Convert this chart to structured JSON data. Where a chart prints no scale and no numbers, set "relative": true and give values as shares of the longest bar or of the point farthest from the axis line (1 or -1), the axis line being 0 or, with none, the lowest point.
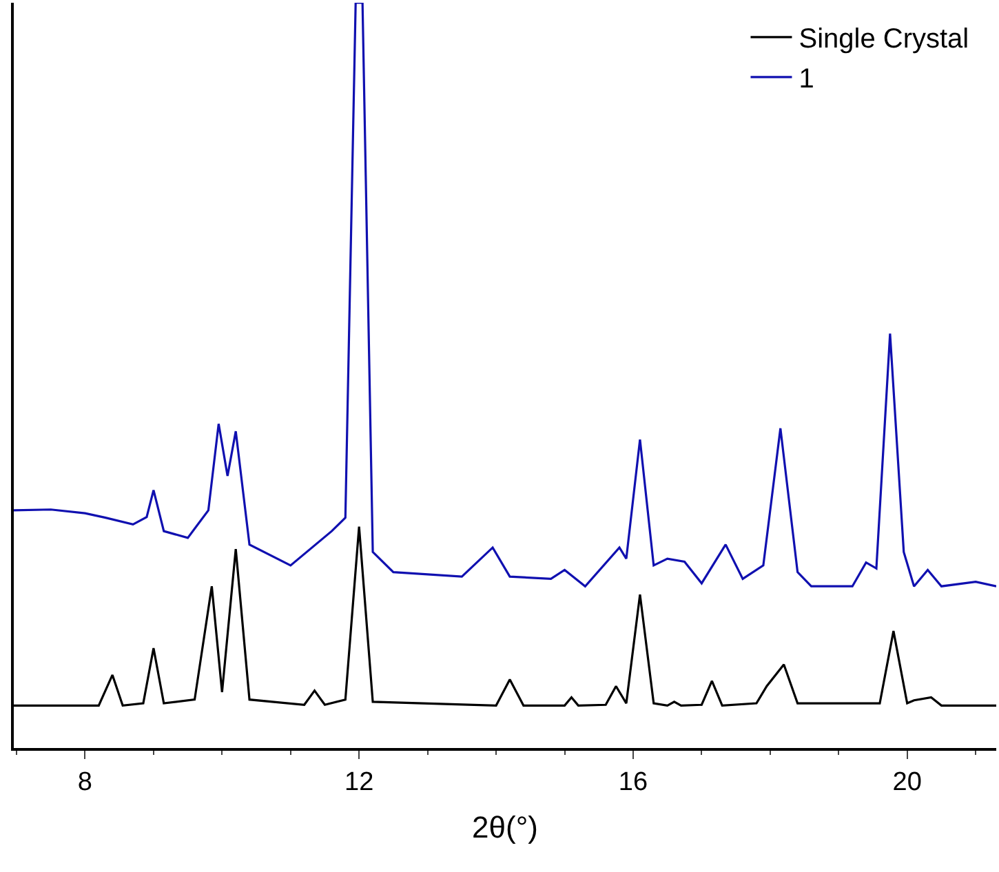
{
  "chart_data": {
    "type": "line",
    "relative": true,
    "xlabel": "2θ(°)",
    "xlim": [
      6.96,
      21.3
    ],
    "xticks": [
      8,
      12,
      16,
      20
    ],
    "legend": "top right",
    "marker": "none",
    "line_style": "solid",
    "series": [
      {
        "name": "Single Crystal",
        "color": "#000000",
        "x": [
          6.96,
          8.2,
          8.4,
          8.55,
          8.85,
          9.0,
          9.15,
          9.6,
          9.85,
          10.0,
          10.2,
          10.4,
          11.2,
          11.35,
          11.5,
          11.8,
          12.0,
          12.2,
          14.0,
          14.2,
          14.4,
          15.0,
          15.1,
          15.2,
          15.6,
          15.75,
          15.9,
          16.1,
          16.3,
          16.5,
          16.6,
          16.7,
          17.0,
          17.15,
          17.3,
          17.8,
          17.95,
          18.2,
          18.4,
          19.6,
          19.8,
          20.0,
          20.1,
          20.35,
          20.5,
          21.3
        ],
        "values": [
          0.057,
          0.057,
          0.098,
          0.057,
          0.06,
          0.134,
          0.06,
          0.065,
          0.217,
          0.075,
          0.267,
          0.065,
          0.058,
          0.077,
          0.058,
          0.065,
          0.297,
          0.062,
          0.057,
          0.092,
          0.057,
          0.057,
          0.068,
          0.057,
          0.058,
          0.083,
          0.06,
          0.206,
          0.06,
          0.057,
          0.062,
          0.057,
          0.058,
          0.09,
          0.057,
          0.06,
          0.083,
          0.112,
          0.06,
          0.06,
          0.157,
          0.06,
          0.064,
          0.068,
          0.057,
          0.057
        ]
      },
      {
        "name": "1",
        "color": "#1010b0",
        "x": [
          6.96,
          7.5,
          8.0,
          8.3,
          8.7,
          8.9,
          9.0,
          9.15,
          9.5,
          9.8,
          9.95,
          10.08,
          10.2,
          10.4,
          11.0,
          11.6,
          11.8,
          11.95,
          12.05,
          12.2,
          12.5,
          13.5,
          13.95,
          14.2,
          14.8,
          15.0,
          15.3,
          15.8,
          15.9,
          16.1,
          16.3,
          16.5,
          16.75,
          17.0,
          17.35,
          17.6,
          17.9,
          18.15,
          18.4,
          18.6,
          19.2,
          19.4,
          19.55,
          19.75,
          19.95,
          20.1,
          20.3,
          20.5,
          21.0,
          21.3
        ],
        "values": [
          0.319,
          0.32,
          0.315,
          0.309,
          0.3,
          0.31,
          0.346,
          0.291,
          0.282,
          0.319,
          0.435,
          0.365,
          0.425,
          0.273,
          0.245,
          0.291,
          0.309,
          1.0,
          1.0,
          0.263,
          0.236,
          0.23,
          0.269,
          0.23,
          0.227,
          0.239,
          0.217,
          0.269,
          0.254,
          0.414,
          0.245,
          0.254,
          0.25,
          0.221,
          0.273,
          0.227,
          0.245,
          0.429,
          0.236,
          0.217,
          0.217,
          0.249,
          0.241,
          0.556,
          0.263,
          0.217,
          0.239,
          0.217,
          0.223,
          0.217
        ]
      }
    ]
  }
}
